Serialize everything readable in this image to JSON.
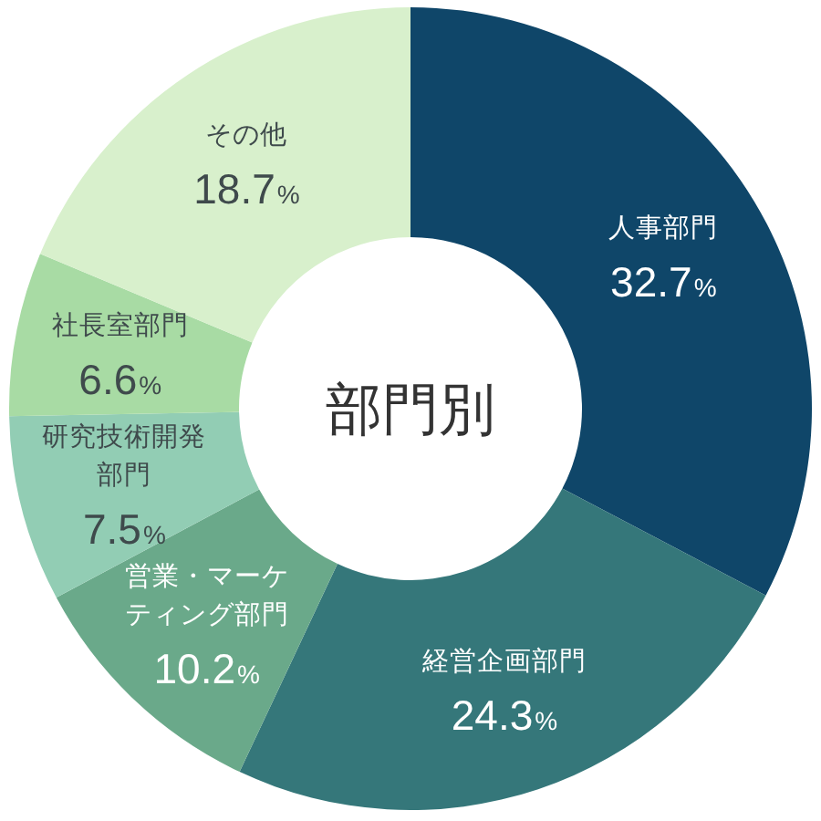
{
  "chart_data": {
    "type": "donut",
    "title": "部門別",
    "categories": [
      "人事部門",
      "経営企画部門",
      "営業・マーケティング部門",
      "研究技術開発部門",
      "社長室部門",
      "その他"
    ],
    "values": [
      32.7,
      24.3,
      10.2,
      7.5,
      6.6,
      18.7
    ],
    "colors": [
      "#0f4669",
      "#35777a",
      "#6aa98a",
      "#92cdb4",
      "#a8dba4",
      "#d8f0cc"
    ],
    "value_labels": [
      "32.7%",
      "24.3%",
      "10.2%",
      "7.5%",
      "6.6%",
      "18.7%"
    ]
  }
}
